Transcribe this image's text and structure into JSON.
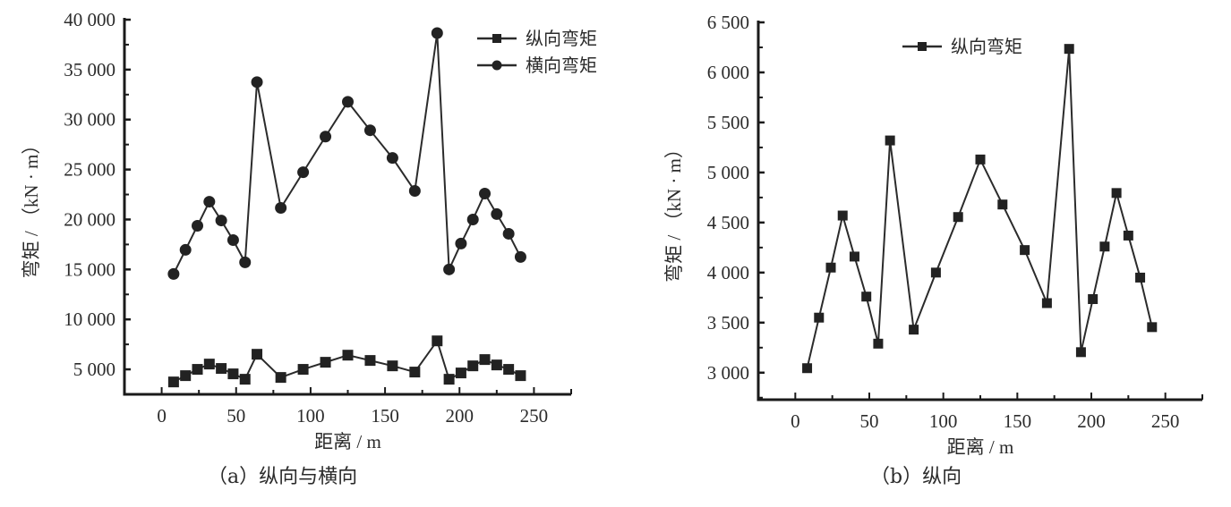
{
  "figure": {
    "panels": [
      {
        "id": "a",
        "caption": "（a）纵向与横向",
        "xlabel": "距离 / m",
        "ylabel": "弯矩 / （kN · m）",
        "legend": [
          "纵向弯矩",
          "横向弯矩"
        ]
      },
      {
        "id": "b",
        "caption": "（b）纵向",
        "xlabel": "距离 / m",
        "ylabel": "弯矩 / （kN · m）",
        "legend": [
          "纵向弯矩"
        ]
      }
    ]
  },
  "colors": {
    "line": "#2b2b2b",
    "marker": "#222222",
    "axis": "#1a1a1a"
  },
  "chart_data": [
    {
      "type": "line",
      "title": "（a）纵向与横向",
      "xlabel": "距离 / m",
      "ylabel": "弯矩 / （kN · m）",
      "xlim": [
        -25,
        275
      ],
      "ylim": [
        2500,
        40000
      ],
      "xticks": [
        0,
        50,
        100,
        150,
        200,
        250
      ],
      "xtick_labels": [
        "0",
        "50",
        "100",
        "150",
        "200",
        "250"
      ],
      "yticks": [
        5000,
        10000,
        15000,
        20000,
        25000,
        30000,
        35000,
        40000
      ],
      "ytick_labels": [
        "5 000",
        "10 000",
        "15 000",
        "20 000",
        "25 000",
        "30 000",
        "35 000",
        "40 000"
      ],
      "grid": false,
      "legend_position": "upper right",
      "x": [
        8,
        16,
        24,
        32,
        40,
        48,
        56,
        64,
        80,
        95,
        110,
        125,
        140,
        155,
        170,
        185,
        193,
        201,
        209,
        217,
        225,
        233,
        241
      ],
      "series": [
        {
          "name": "纵向弯矩",
          "marker": "square",
          "values": [
            3740,
            4370,
            5000,
            5530,
            5090,
            4550,
            4010,
            6510,
            4190,
            5000,
            5710,
            6420,
            5890,
            5350,
            4730,
            7850,
            4010,
            4640,
            5350,
            5980,
            5440,
            5000,
            4370
          ]
        },
        {
          "name": "横向弯矩",
          "marker": "circle",
          "values": [
            14550,
            16960,
            19370,
            21780,
            19900,
            17940,
            15710,
            33750,
            21160,
            24730,
            28300,
            31780,
            28930,
            26160,
            22860,
            38660,
            15000,
            17590,
            20000,
            22590,
            20540,
            18570,
            16250
          ]
        }
      ]
    },
    {
      "type": "line",
      "title": "（b）纵向",
      "xlabel": "距离 / m",
      "ylabel": "弯矩 / （kN · m）",
      "xlim": [
        -25,
        275
      ],
      "ylim": [
        2730,
        6500
      ],
      "xticks": [
        0,
        50,
        100,
        150,
        200,
        250
      ],
      "xtick_labels": [
        "0",
        "50",
        "100",
        "150",
        "200",
        "250"
      ],
      "yticks": [
        3000,
        3500,
        4000,
        4500,
        5000,
        5500,
        6000,
        6500
      ],
      "ytick_labels": [
        "3 000",
        "3 500",
        "4 000",
        "4 500",
        "5 000",
        "5 500",
        "6 000",
        "6 500"
      ],
      "grid": false,
      "legend_position": "upper center",
      "x": [
        8,
        16,
        24,
        32,
        40,
        48,
        56,
        64,
        80,
        95,
        110,
        125,
        140,
        155,
        170,
        185,
        193,
        201,
        209,
        217,
        225,
        233,
        241
      ],
      "series": [
        {
          "name": "纵向弯矩",
          "marker": "square",
          "values": [
            3045,
            3550,
            4050,
            4570,
            4160,
            3760,
            3290,
            5320,
            3430,
            4000,
            4555,
            5130,
            4680,
            4225,
            3695,
            6235,
            3205,
            3735,
            4260,
            4795,
            4370,
            3950,
            3455
          ]
        }
      ]
    }
  ]
}
